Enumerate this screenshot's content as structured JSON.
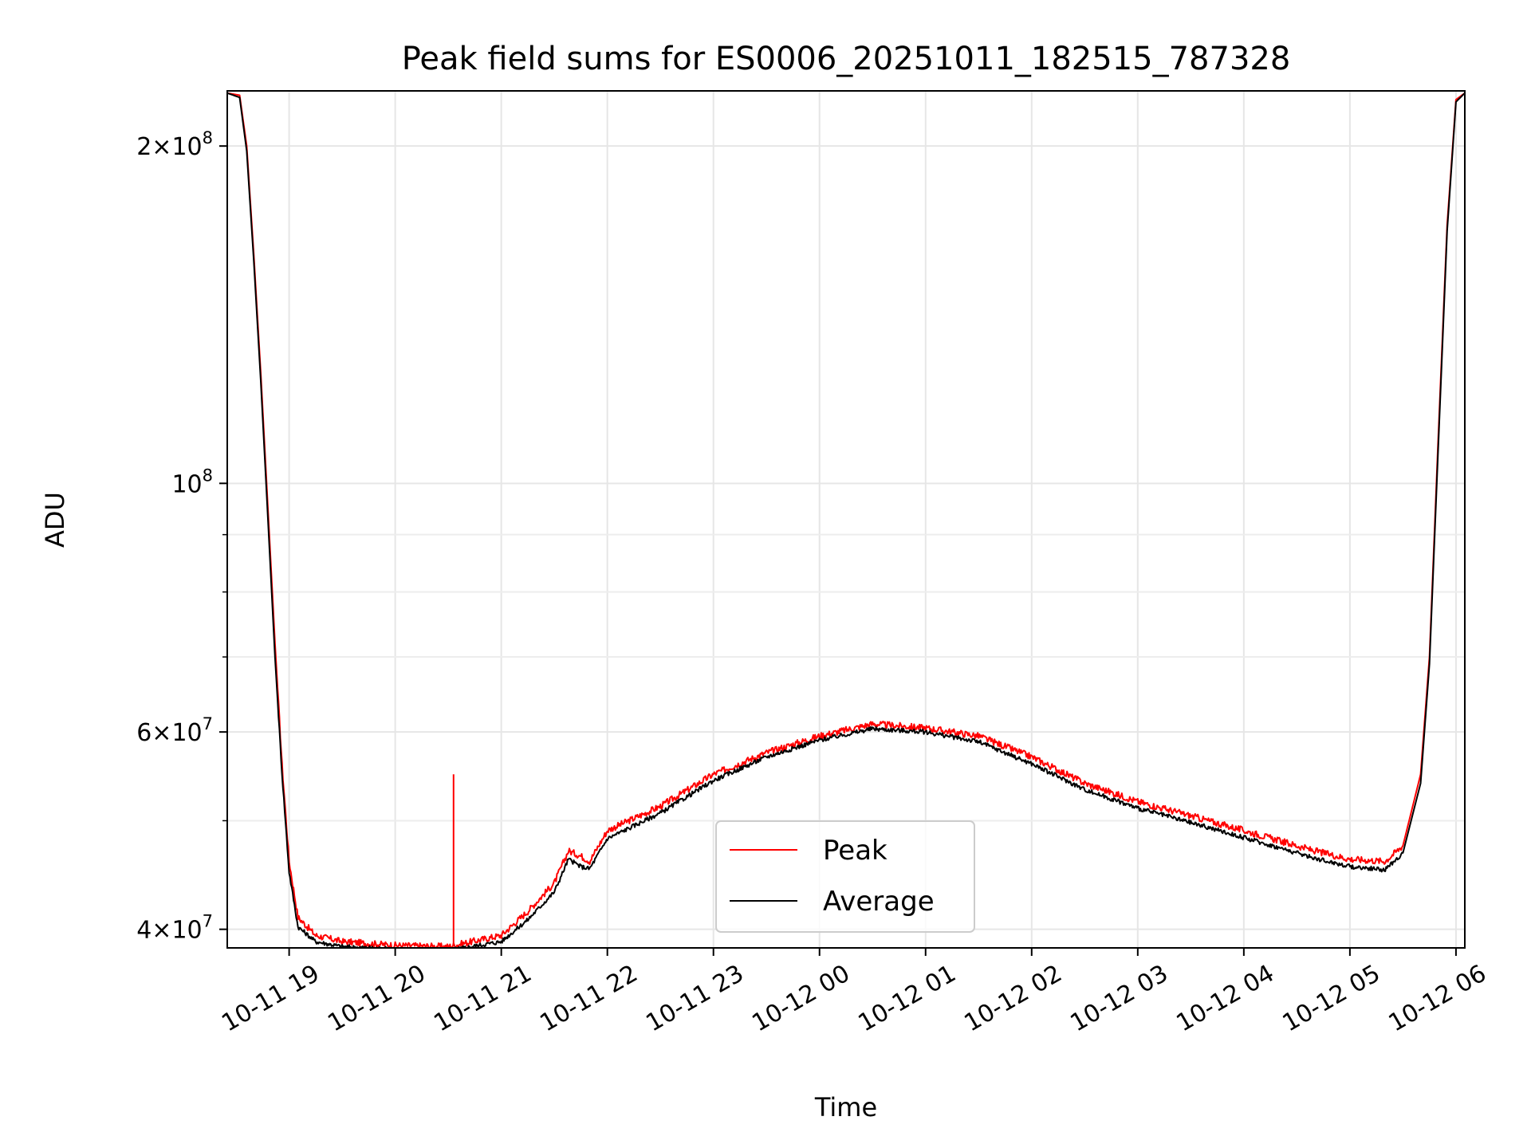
{
  "chart_data": {
    "type": "line",
    "title": "Peak field sums for ES0006_20251011_182515_787328",
    "xlabel": "Time",
    "ylabel": "ADU",
    "x_unit": "hours",
    "xlim": [
      "10-11 18:25",
      "10-12 06:05"
    ],
    "ylim": [
      38500000,
      224000000
    ],
    "y_scale": "log",
    "grid": true,
    "legend_position": "lower-center",
    "x_ticks": [
      {
        "x": "10-11 19:00",
        "label": "10-11 19"
      },
      {
        "x": "10-11 20:00",
        "label": "10-11 20"
      },
      {
        "x": "10-11 21:00",
        "label": "10-11 21"
      },
      {
        "x": "10-11 22:00",
        "label": "10-11 22"
      },
      {
        "x": "10-11 23:00",
        "label": "10-11 23"
      },
      {
        "x": "10-12 00:00",
        "label": "10-12 00"
      },
      {
        "x": "10-12 01:00",
        "label": "10-12 01"
      },
      {
        "x": "10-12 02:00",
        "label": "10-12 02"
      },
      {
        "x": "10-12 03:00",
        "label": "10-12 03"
      },
      {
        "x": "10-12 04:00",
        "label": "10-12 04"
      },
      {
        "x": "10-12 05:00",
        "label": "10-12 05"
      },
      {
        "x": "10-12 06:00",
        "label": "10-12 06"
      }
    ],
    "y_ticks": [
      {
        "value": 40000000,
        "mantissa": "4",
        "exponent": "7"
      },
      {
        "value": 60000000,
        "mantissa": "6",
        "exponent": "7"
      },
      {
        "value": 100000000,
        "mantissa": "",
        "exponent": "8"
      },
      {
        "value": 200000000,
        "mantissa": "2",
        "exponent": "8"
      }
    ],
    "y_minor_ticks": [
      50000000,
      70000000,
      80000000,
      90000000
    ],
    "series": [
      {
        "name": "Peak",
        "color": "#ff0000",
        "x": [
          "10-11 18:25",
          "10-11 18:32",
          "10-11 18:36",
          "10-11 18:40",
          "10-11 18:44",
          "10-11 18:48",
          "10-11 18:52",
          "10-11 18:56",
          "10-11 19:00",
          "10-11 19:05",
          "10-11 19:15",
          "10-11 19:30",
          "10-11 20:00",
          "10-11 20:30",
          "10-11 21:00",
          "10-11 21:15",
          "10-11 21:30",
          "10-11 21:38",
          "10-11 21:45",
          "10-11 21:50",
          "10-11 22:00",
          "10-11 22:30",
          "10-11 23:00",
          "10-11 23:30",
          "10-12 00:00",
          "10-12 00:30",
          "10-12 01:00",
          "10-12 01:30",
          "10-12 02:00",
          "10-12 02:30",
          "10-12 03:00",
          "10-12 03:30",
          "10-12 04:00",
          "10-12 04:40",
          "10-12 05:00",
          "10-12 05:20",
          "10-12 05:30",
          "10-12 05:40",
          "10-12 05:45",
          "10-12 05:50",
          "10-12 05:55",
          "10-12 06:00",
          "10-12 06:05"
        ],
        "values": [
          223000000,
          222000000,
          200000000,
          160000000,
          125000000,
          95000000,
          72000000,
          56000000,
          46000000,
          41000000,
          39500000,
          39000000,
          38700000,
          38600000,
          39500000,
          41500000,
          44000000,
          47000000,
          46500000,
          46000000,
          49000000,
          51500000,
          55000000,
          57500000,
          59500000,
          61000000,
          60500000,
          59500000,
          57000000,
          54000000,
          52000000,
          50500000,
          49000000,
          47000000,
          46200000,
          46000000,
          47500000,
          55000000,
          70000000,
          110000000,
          170000000,
          220000000,
          223000000
        ],
        "spike": {
          "x": "10-11 20:33",
          "value": 55000000
        }
      },
      {
        "name": "Average",
        "color": "#000000",
        "x": [
          "10-11 18:25",
          "10-11 18:32",
          "10-11 18:36",
          "10-11 18:40",
          "10-11 18:44",
          "10-11 18:48",
          "10-11 18:52",
          "10-11 18:56",
          "10-11 19:00",
          "10-11 19:05",
          "10-11 19:15",
          "10-11 19:30",
          "10-11 20:00",
          "10-11 20:30",
          "10-11 21:00",
          "10-11 21:15",
          "10-11 21:30",
          "10-11 21:38",
          "10-11 21:45",
          "10-11 21:50",
          "10-11 22:00",
          "10-11 22:30",
          "10-11 23:00",
          "10-11 23:30",
          "10-12 00:00",
          "10-12 00:30",
          "10-12 01:00",
          "10-12 01:30",
          "10-12 02:00",
          "10-12 02:30",
          "10-12 03:00",
          "10-12 03:30",
          "10-12 04:00",
          "10-12 04:40",
          "10-12 05:00",
          "10-12 05:20",
          "10-12 05:30",
          "10-12 05:40",
          "10-12 05:45",
          "10-12 05:50",
          "10-12 05:55",
          "10-12 06:00",
          "10-12 06:05"
        ],
        "values": [
          223000000,
          221000000,
          198000000,
          158000000,
          123000000,
          93000000,
          70000000,
          55000000,
          45000000,
          40200000,
          39000000,
          38600000,
          38400000,
          38300000,
          39000000,
          40800000,
          43200000,
          46200000,
          45500000,
          45300000,
          48200000,
          50800000,
          54300000,
          57000000,
          59000000,
          60400000,
          60000000,
          58800000,
          56200000,
          53300000,
          51300000,
          49800000,
          48300000,
          46300000,
          45500000,
          45200000,
          46800000,
          54000000,
          69000000,
          108000000,
          168000000,
          219000000,
          223000000
        ]
      }
    ]
  }
}
